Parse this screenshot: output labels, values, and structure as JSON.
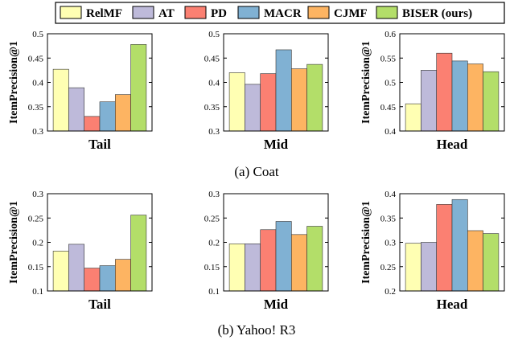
{
  "legend": {
    "entries": [
      {
        "name": "RelMF",
        "color": "#ffffb3"
      },
      {
        "name": "AT",
        "color": "#bebada"
      },
      {
        "name": "PD",
        "color": "#fb8072"
      },
      {
        "name": "MACR",
        "color": "#80b1d3"
      },
      {
        "name": "CJMF",
        "color": "#fdb462"
      },
      {
        "name": "BISER (ours)",
        "color": "#b3de69"
      }
    ]
  },
  "chart_data": [
    {
      "type": "bar",
      "group": "Coat",
      "ylabel": "ItemPrecision@1",
      "xlabel": "Tail",
      "ylim": [
        0.3,
        0.5
      ],
      "yticks": [
        "0.3",
        "0.35",
        "0.4",
        "0.45",
        "0.5"
      ],
      "series": [
        {
          "name": "RelMF",
          "values": [
            0.427
          ]
        },
        {
          "name": "AT",
          "values": [
            0.389
          ]
        },
        {
          "name": "PD",
          "values": [
            0.33
          ]
        },
        {
          "name": "MACR",
          "values": [
            0.36
          ]
        },
        {
          "name": "CJMF",
          "values": [
            0.375
          ]
        },
        {
          "name": "BISER (ours)",
          "values": [
            0.478
          ]
        }
      ]
    },
    {
      "type": "bar",
      "group": "Coat",
      "ylabel": "",
      "xlabel": "Mid",
      "ylim": [
        0.3,
        0.5
      ],
      "yticks": [
        "0.3",
        "0.35",
        "0.4",
        "0.45",
        "0.5"
      ],
      "series": [
        {
          "name": "RelMF",
          "values": [
            0.42
          ]
        },
        {
          "name": "AT",
          "values": [
            0.396
          ]
        },
        {
          "name": "PD",
          "values": [
            0.418
          ]
        },
        {
          "name": "MACR",
          "values": [
            0.467
          ]
        },
        {
          "name": "CJMF",
          "values": [
            0.428
          ]
        },
        {
          "name": "BISER (ours)",
          "values": [
            0.437
          ]
        }
      ]
    },
    {
      "type": "bar",
      "group": "Coat",
      "ylabel": "ItemPrecision@1",
      "xlabel": "Head",
      "ylim": [
        0.4,
        0.6
      ],
      "yticks": [
        "0.4",
        "0.45",
        "0.5",
        "0.55",
        "0.6"
      ],
      "series": [
        {
          "name": "RelMF",
          "values": [
            0.456
          ]
        },
        {
          "name": "AT",
          "values": [
            0.525
          ]
        },
        {
          "name": "PD",
          "values": [
            0.56
          ]
        },
        {
          "name": "MACR",
          "values": [
            0.544
          ]
        },
        {
          "name": "CJMF",
          "values": [
            0.538
          ]
        },
        {
          "name": "BISER (ours)",
          "values": [
            0.522
          ]
        }
      ]
    },
    {
      "type": "bar",
      "group": "Yahoo! R3",
      "ylabel": "ItemPrecision@1",
      "xlabel": "Tail",
      "ylim": [
        0.1,
        0.3
      ],
      "yticks": [
        "0.1",
        "0.15",
        "0.2",
        "0.25",
        "0.3"
      ],
      "series": [
        {
          "name": "RelMF",
          "values": [
            0.182
          ]
        },
        {
          "name": "AT",
          "values": [
            0.196
          ]
        },
        {
          "name": "PD",
          "values": [
            0.147
          ]
        },
        {
          "name": "MACR",
          "values": [
            0.152
          ]
        },
        {
          "name": "CJMF",
          "values": [
            0.165
          ]
        },
        {
          "name": "BISER (ours)",
          "values": [
            0.256
          ]
        }
      ]
    },
    {
      "type": "bar",
      "group": "Yahoo! R3",
      "ylabel": "",
      "xlabel": "Mid",
      "ylim": [
        0.1,
        0.3
      ],
      "yticks": [
        "0.1",
        "0.15",
        "0.2",
        "0.25",
        "0.3"
      ],
      "series": [
        {
          "name": "RelMF",
          "values": [
            0.197
          ]
        },
        {
          "name": "AT",
          "values": [
            0.197
          ]
        },
        {
          "name": "PD",
          "values": [
            0.226
          ]
        },
        {
          "name": "MACR",
          "values": [
            0.243
          ]
        },
        {
          "name": "CJMF",
          "values": [
            0.216
          ]
        },
        {
          "name": "BISER (ours)",
          "values": [
            0.233
          ]
        }
      ]
    },
    {
      "type": "bar",
      "group": "Yahoo! R3",
      "ylabel": "ItemPrecision@1",
      "xlabel": "Head",
      "ylim": [
        0.2,
        0.4
      ],
      "yticks": [
        "0.2",
        "0.25",
        "0.3",
        "0.35",
        "0.4"
      ],
      "series": [
        {
          "name": "RelMF",
          "values": [
            0.298
          ]
        },
        {
          "name": "AT",
          "values": [
            0.3
          ]
        },
        {
          "name": "PD",
          "values": [
            0.378
          ]
        },
        {
          "name": "MACR",
          "values": [
            0.388
          ]
        },
        {
          "name": "CJMF",
          "values": [
            0.324
          ]
        },
        {
          "name": "BISER (ours)",
          "values": [
            0.318
          ]
        }
      ]
    }
  ],
  "captions": [
    "(a) Coat",
    "(b) Yahoo! R3"
  ]
}
